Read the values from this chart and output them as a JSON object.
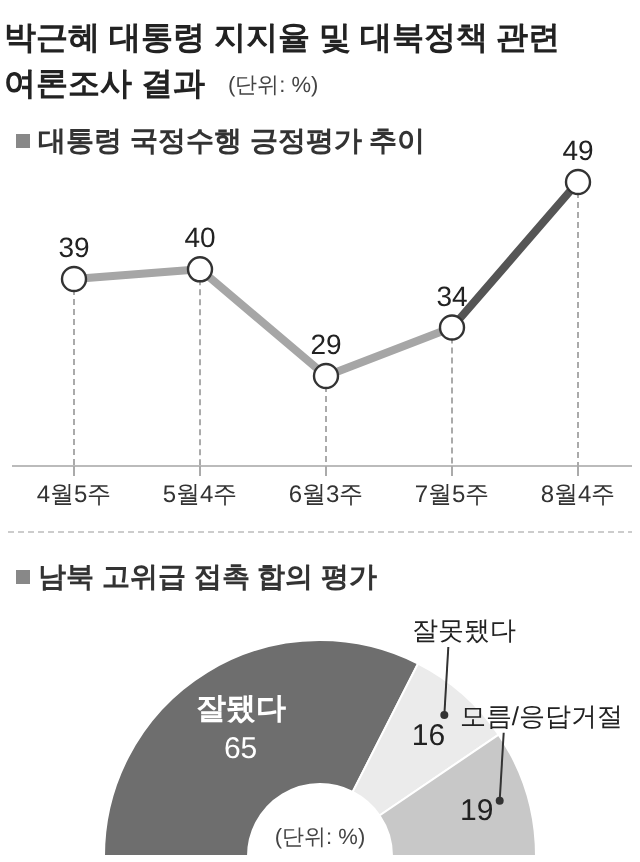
{
  "chart_data": [
    {
      "type": "line",
      "title": "대통령 국정수행 긍정평가 추이",
      "annotations": [
        "박근혜 대통령 지지율 및 대북정책 관련",
        "여론조사 결과",
        "(단위: %)"
      ],
      "categories": [
        "4월5주",
        "5월4주",
        "6월3주",
        "7월5주",
        "8월4주"
      ],
      "series": [
        {
          "color": "#a6a6a6",
          "values": [
            39,
            40,
            29,
            34,
            null
          ],
          "value_labels": [
            "39",
            "40",
            "29",
            "34",
            null
          ]
        },
        {
          "color": "#555555",
          "values": [
            null,
            null,
            null,
            34,
            49
          ],
          "value_labels": [
            null,
            null,
            null,
            null,
            "49"
          ]
        }
      ],
      "marker": "circle",
      "grid": "x",
      "tick_labels": "x"
    },
    {
      "type": "donut",
      "title": "남북 고위급 접촉 합의 평가",
      "annotations": [
        "(단위: %)"
      ],
      "categories": [
        "잘됐다",
        "잘못됐다",
        "모름/응답거절"
      ],
      "values": [
        65,
        16,
        19
      ],
      "colors": [
        "#6e6e6e",
        "#ebebeb",
        "#c8c8c8"
      ],
      "data_labels": true
    }
  ]
}
